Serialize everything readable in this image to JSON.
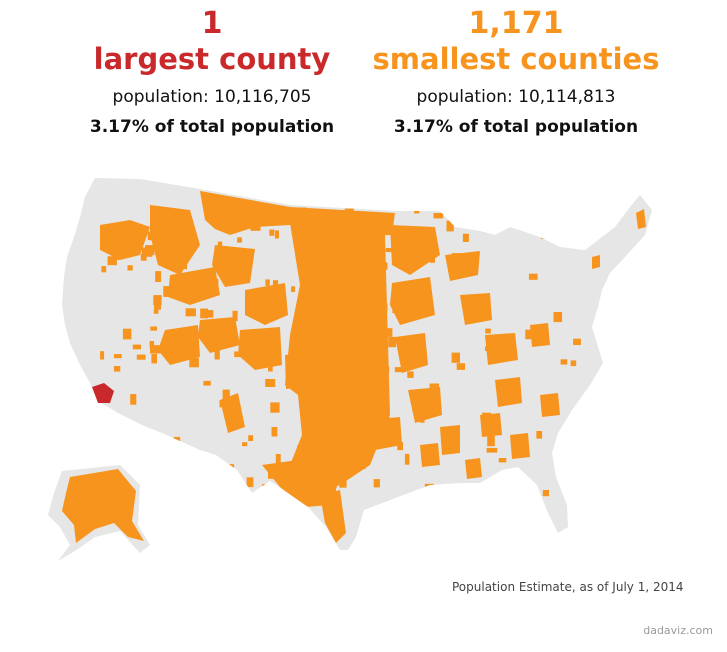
{
  "colors": {
    "largest": "#c9292b",
    "smallest": "#f7941d",
    "land": "#e6e6e6",
    "background": "#ffffff"
  },
  "left_stat": {
    "number": "1",
    "label": "largest county",
    "population": "population: 10,116,705",
    "percent": "3.17% of total population"
  },
  "right_stat": {
    "number": "1,171",
    "label": "smallest counties",
    "population": "population: 10,114,813",
    "percent": "3.17% of total population"
  },
  "map": {
    "highlighted_largest_county": "Los Angeles County",
    "regions": [
      "contiguous-us",
      "alaska"
    ]
  },
  "caption": "Population Estimate, as of July 1, 2014",
  "credit": "dadaviz.com"
}
